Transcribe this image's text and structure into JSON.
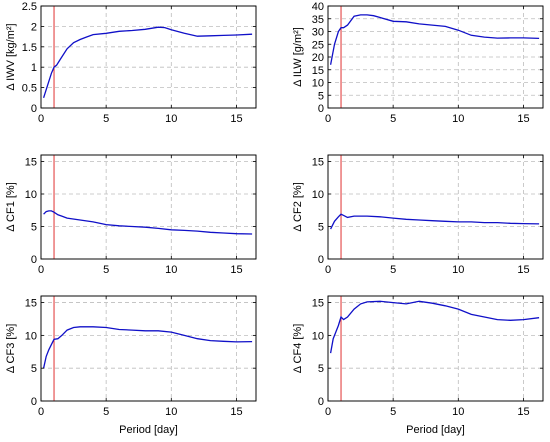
{
  "chart_data": [
    {
      "type": "line",
      "ylabel": "Δ IWV [kg/m²]",
      "xlabel": "",
      "xlim": [
        0,
        16.5
      ],
      "ylim": [
        0,
        2.5
      ],
      "xticks": [
        0,
        5,
        10,
        15
      ],
      "yticks": [
        0,
        0.5,
        1,
        1.5,
        2,
        2.5
      ],
      "ytick_labels": [
        "0",
        "0.5",
        "1",
        "1.5",
        "2",
        "2.5"
      ],
      "grid": true,
      "reference_line_x": 1,
      "series": [
        {
          "color": "#1010c8",
          "x": [
            0.2,
            0.5,
            0.8,
            1.0,
            1.2,
            1.5,
            2,
            2.5,
            3,
            3.5,
            4,
            5,
            6,
            7,
            8,
            9,
            9.5,
            10,
            11,
            12,
            13,
            14,
            15,
            16.2
          ],
          "y": [
            0.25,
            0.55,
            0.85,
            1.0,
            1.05,
            1.2,
            1.45,
            1.6,
            1.68,
            1.74,
            1.8,
            1.83,
            1.88,
            1.9,
            1.93,
            1.98,
            1.97,
            1.92,
            1.83,
            1.76,
            1.77,
            1.78,
            1.79,
            1.81
          ]
        }
      ]
    },
    {
      "type": "line",
      "ylabel": "Δ ILW [g/m²]",
      "xlabel": "",
      "xlim": [
        0,
        16.5
      ],
      "ylim": [
        0,
        40
      ],
      "xticks": [
        0,
        5,
        10,
        15
      ],
      "yticks": [
        0,
        5,
        10,
        15,
        20,
        25,
        30,
        35,
        40
      ],
      "ytick_labels": [
        "0",
        "5",
        "10",
        "15",
        "20",
        "25",
        "30",
        "35",
        "40"
      ],
      "grid": true,
      "reference_line_x": 1,
      "series": [
        {
          "color": "#1010c8",
          "x": [
            0.2,
            0.5,
            0.8,
            1.0,
            1.2,
            1.5,
            2,
            2.5,
            3,
            3.5,
            4,
            5,
            6,
            7,
            8,
            9,
            10,
            11,
            12,
            13,
            14,
            15,
            16.2
          ],
          "y": [
            17,
            25,
            30,
            31.5,
            31.5,
            32.5,
            36,
            36.5,
            36.5,
            36.2,
            35.5,
            34,
            33.8,
            33,
            32.5,
            32,
            30.5,
            28.5,
            27.8,
            27.4,
            27.5,
            27.5,
            27.3
          ]
        }
      ]
    },
    {
      "type": "line",
      "ylabel": "Δ CF1 [%]",
      "xlabel": "",
      "xlim": [
        0,
        16.5
      ],
      "ylim": [
        0,
        16
      ],
      "xticks": [
        0,
        5,
        10,
        15
      ],
      "yticks": [
        0,
        5,
        10,
        15
      ],
      "ytick_labels": [
        "0",
        "5",
        "10",
        "15"
      ],
      "grid": true,
      "reference_line_x": 1,
      "series": [
        {
          "color": "#1010c8",
          "x": [
            0.2,
            0.4,
            0.6,
            0.8,
            1.0,
            1.3,
            1.6,
            2,
            3,
            4,
            5,
            6,
            7,
            8,
            9,
            10,
            11,
            12,
            13,
            14,
            15,
            16.2
          ],
          "y": [
            6.9,
            7.3,
            7.4,
            7.4,
            7.2,
            6.8,
            6.6,
            6.3,
            6.0,
            5.7,
            5.3,
            5.1,
            5.0,
            4.9,
            4.7,
            4.5,
            4.4,
            4.3,
            4.1,
            4.0,
            3.9,
            3.85
          ]
        }
      ]
    },
    {
      "type": "line",
      "ylabel": "Δ CF2 [%]",
      "xlabel": "",
      "xlim": [
        0,
        16.5
      ],
      "ylim": [
        0,
        16
      ],
      "xticks": [
        0,
        5,
        10,
        15
      ],
      "yticks": [
        0,
        5,
        10,
        15
      ],
      "ytick_labels": [
        "0",
        "5",
        "10",
        "15"
      ],
      "grid": true,
      "reference_line_x": 1,
      "series": [
        {
          "color": "#1010c8",
          "x": [
            0.2,
            0.5,
            0.8,
            1.0,
            1.2,
            1.5,
            2,
            3,
            4,
            5,
            6,
            7,
            8,
            9,
            10,
            11,
            12,
            13,
            14,
            15,
            16.2
          ],
          "y": [
            4.6,
            5.8,
            6.5,
            6.9,
            6.7,
            6.4,
            6.6,
            6.6,
            6.5,
            6.3,
            6.1,
            6.0,
            5.9,
            5.8,
            5.7,
            5.7,
            5.6,
            5.6,
            5.5,
            5.45,
            5.4
          ]
        }
      ]
    },
    {
      "type": "line",
      "ylabel": "Δ CF3 [%]",
      "xlabel": "Period [day]",
      "xlim": [
        0,
        16.5
      ],
      "ylim": [
        0,
        16
      ],
      "xticks": [
        0,
        5,
        10,
        15
      ],
      "yticks": [
        0,
        5,
        10,
        15
      ],
      "ytick_labels": [
        "0",
        "5",
        "10",
        "15"
      ],
      "grid": true,
      "reference_line_x": 1,
      "series": [
        {
          "color": "#1010c8",
          "x": [
            0.2,
            0.4,
            0.6,
            0.8,
            1.0,
            1.3,
            1.6,
            2,
            2.5,
            3,
            4,
            5,
            6,
            7,
            8,
            9,
            10,
            11,
            12,
            13,
            14,
            15,
            16.2
          ],
          "y": [
            5.0,
            6.8,
            7.8,
            8.6,
            9.4,
            9.5,
            10.0,
            10.8,
            11.2,
            11.3,
            11.3,
            11.2,
            10.9,
            10.8,
            10.7,
            10.7,
            10.5,
            10.0,
            9.5,
            9.2,
            9.1,
            9.0,
            9.05
          ]
        }
      ]
    },
    {
      "type": "line",
      "ylabel": "Δ CF4 [%]",
      "xlabel": "Period [day]",
      "xlim": [
        0,
        16.5
      ],
      "ylim": [
        0,
        16
      ],
      "xticks": [
        0,
        5,
        10,
        15
      ],
      "yticks": [
        0,
        5,
        10,
        15
      ],
      "ytick_labels": [
        "0",
        "5",
        "10",
        "15"
      ],
      "grid": true,
      "reference_line_x": 1,
      "series": [
        {
          "color": "#1010c8",
          "x": [
            0.2,
            0.4,
            0.6,
            0.8,
            1.0,
            1.2,
            1.5,
            2,
            2.5,
            3,
            4,
            5,
            6,
            7,
            8,
            9,
            10,
            11,
            12,
            13,
            14,
            15,
            16.2
          ],
          "y": [
            7.3,
            9.5,
            10.5,
            11.5,
            12.8,
            12.4,
            12.8,
            14.0,
            14.8,
            15.1,
            15.2,
            15.0,
            14.8,
            15.2,
            14.9,
            14.5,
            14.0,
            13.2,
            12.8,
            12.4,
            12.3,
            12.4,
            12.7
          ]
        }
      ]
    }
  ]
}
